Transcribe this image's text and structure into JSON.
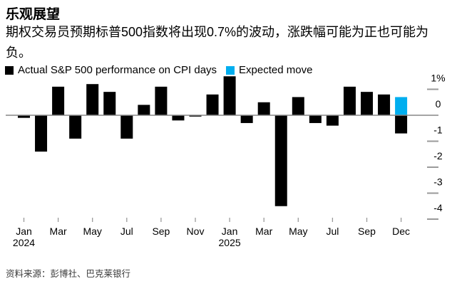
{
  "header": {
    "title": "乐观展望",
    "subtitle": "期权交易员预期标普500指数将出现0.7%的波动，涨跌幅可能为正也可能为负。"
  },
  "legend": {
    "actual": {
      "label": "Actual S&P 500 performance on CPI days",
      "color": "#000000"
    },
    "expected": {
      "label": "Expected move",
      "color": "#00aeef"
    }
  },
  "source": "资料来源：彭博社、巴克莱银行",
  "colors": {
    "bar_actual": "#000000",
    "bar_expected": "#00aeef",
    "zero_line": "#868686",
    "axis_dash": "#9a9a9a",
    "x_tick": "#9a9a9a",
    "axis_label": "#000000"
  },
  "chart_data": {
    "type": "bar",
    "title": "乐观展望",
    "unit": "%",
    "ylabel": "",
    "xlabel": "",
    "ylim": [
      -4.35,
      1.55
    ],
    "grid": "right-edge tick dashes only, zero baseline drawn across plot",
    "legend_position": "top",
    "y_ticks": [
      {
        "label": "1%",
        "value": 1
      },
      {
        "label": "0",
        "value": 0
      },
      {
        "label": "-1",
        "value": -1
      },
      {
        "label": "-2",
        "value": -2
      },
      {
        "label": "-3",
        "value": -3
      },
      {
        "label": "-4",
        "value": -4
      }
    ],
    "bars": [
      {
        "month": "Jan",
        "year": 2024,
        "value": -0.1
      },
      {
        "month": "Feb",
        "year": 2024,
        "value": -1.4
      },
      {
        "month": "Mar",
        "year": 2024,
        "value": 1.1
      },
      {
        "month": "Apr",
        "year": 2024,
        "value": -0.9
      },
      {
        "month": "May",
        "year": 2024,
        "value": 1.2
      },
      {
        "month": "Jun",
        "year": 2024,
        "value": 0.9
      },
      {
        "month": "Jul",
        "year": 2024,
        "value": -0.9
      },
      {
        "month": "Aug",
        "year": 2024,
        "value": 0.4
      },
      {
        "month": "Sep",
        "year": 2024,
        "value": 1.1
      },
      {
        "month": "Oct",
        "year": 2024,
        "value": -0.2
      },
      {
        "month": "Nov",
        "year": 2024,
        "value": -0.05
      },
      {
        "month": "Dec",
        "year": 2024,
        "value": 0.8
      },
      {
        "month": "Jan",
        "year": 2025,
        "value": 1.5
      },
      {
        "month": "Feb",
        "year": 2025,
        "value": -0.3
      },
      {
        "month": "Mar",
        "year": 2025,
        "value": 0.5
      },
      {
        "month": "Apr",
        "year": 2025,
        "value": -3.5
      },
      {
        "month": "May",
        "year": 2025,
        "value": 0.7
      },
      {
        "month": "Jun",
        "year": 2025,
        "value": -0.3
      },
      {
        "month": "Jul",
        "year": 2025,
        "value": -0.4
      },
      {
        "month": "Aug",
        "year": 2025,
        "value": 1.1
      },
      {
        "month": "Sep",
        "year": 2025,
        "value": 0.9
      },
      {
        "month": "Oct",
        "year": 2025,
        "value": 0.8
      }
    ],
    "expected_move": {
      "month": "Dec",
      "year": 2025,
      "slot": 22,
      "up": 0.7,
      "down": -0.7
    },
    "x_tick_labels": [
      {
        "slot": 0,
        "label": "Jan",
        "year": "2024"
      },
      {
        "slot": 2,
        "label": "Mar"
      },
      {
        "slot": 4,
        "label": "May"
      },
      {
        "slot": 6,
        "label": "Jul"
      },
      {
        "slot": 8,
        "label": "Sep"
      },
      {
        "slot": 10,
        "label": "Nov"
      },
      {
        "slot": 12,
        "label": "Jan",
        "year": "2025"
      },
      {
        "slot": 14,
        "label": "Mar"
      },
      {
        "slot": 16,
        "label": "May"
      },
      {
        "slot": 18,
        "label": "Jul"
      },
      {
        "slot": 20,
        "label": "Sep"
      },
      {
        "slot": 22,
        "label": "Dec"
      }
    ]
  }
}
